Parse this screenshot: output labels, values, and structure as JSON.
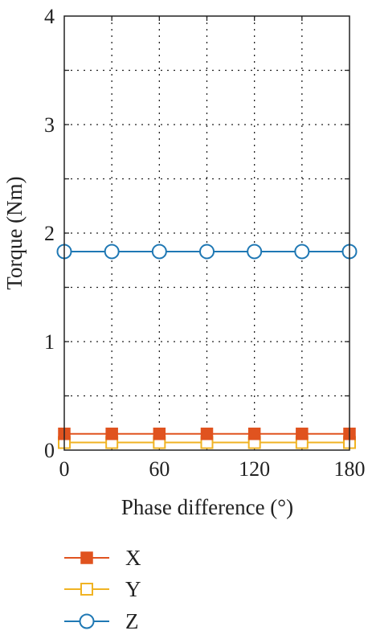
{
  "chart_data": {
    "type": "line",
    "xlabel": "Phase difference (°)",
    "ylabel": "Torque (Nm)",
    "xlim": [
      0,
      180
    ],
    "ylim": [
      0,
      4
    ],
    "x_ticks": [
      "0",
      "60",
      "120",
      "180"
    ],
    "y_ticks": [
      "0",
      "1",
      "2",
      "3",
      "4"
    ],
    "grid": "dotted",
    "legend_placement": "bottom",
    "x": [
      0,
      30,
      60,
      90,
      120,
      150,
      180
    ],
    "series": [
      {
        "name": "X",
        "values": [
          0.15,
          0.15,
          0.15,
          0.15,
          0.15,
          0.15,
          0.15
        ],
        "color": "#E0531F",
        "marker": "filled-square"
      },
      {
        "name": "Y",
        "values": [
          0.07,
          0.07,
          0.07,
          0.07,
          0.07,
          0.07,
          0.07
        ],
        "color": "#F0B323",
        "marker": "open-square"
      },
      {
        "name": "Z",
        "values": [
          1.83,
          1.83,
          1.83,
          1.83,
          1.83,
          1.83,
          1.83
        ],
        "color": "#1F78B4",
        "marker": "open-circle"
      }
    ]
  }
}
